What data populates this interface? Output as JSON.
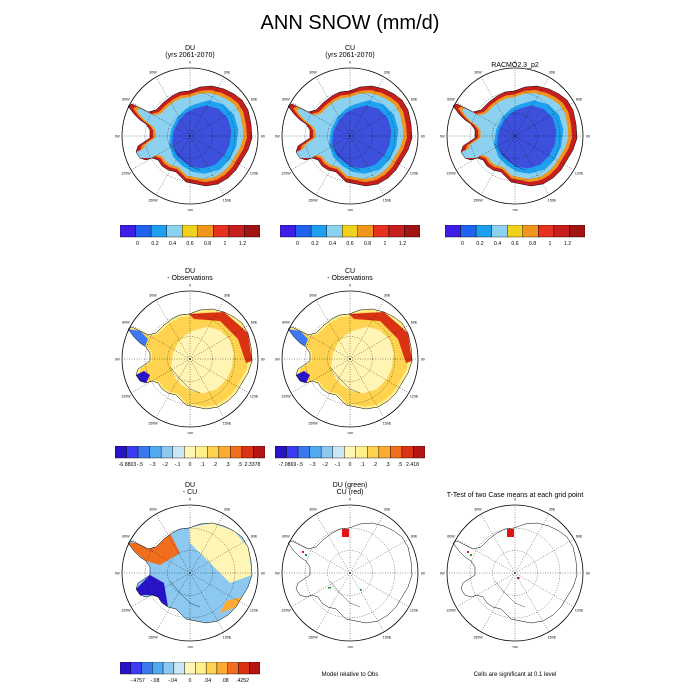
{
  "page": {
    "title": "ANN SNOW (mm/d)"
  },
  "chart_data": [
    {
      "type": "polar-map",
      "title_lines": [
        "DU",
        "(yrs 2061-2070)"
      ],
      "colorbar": {
        "colors": [
          "#3c1ee6",
          "#1e64f0",
          "#1ea0f0",
          "#8cd2f0",
          "#f0d21e",
          "#f0961e",
          "#e6321e",
          "#c81e1e",
          "#a01414"
        ],
        "labels": [
          "0",
          "0.2",
          "0.4",
          "0.6",
          "0.8",
          "1",
          "1.2"
        ]
      }
    },
    {
      "type": "polar-map",
      "title_lines": [
        "CU",
        "(yrs 2061-2070)"
      ],
      "colorbar": {
        "colors": [
          "#3c1ee6",
          "#1e64f0",
          "#1ea0f0",
          "#8cd2f0",
          "#f0d21e",
          "#f0961e",
          "#e6321e",
          "#c81e1e",
          "#a01414"
        ],
        "labels": [
          "0",
          "0.2",
          "0.4",
          "0.6",
          "0.8",
          "1",
          "1.2"
        ]
      }
    },
    {
      "type": "polar-map",
      "title_lines": [
        "RACMO2.3_p2"
      ],
      "colorbar": {
        "colors": [
          "#3c1ee6",
          "#1e64f0",
          "#1ea0f0",
          "#8cd2f0",
          "#f0d21e",
          "#f0961e",
          "#e6321e",
          "#c81e1e",
          "#a01414"
        ],
        "labels": [
          "0",
          "0.2",
          "0.4",
          "0.6",
          "0.8",
          "1",
          "1.2"
        ]
      }
    },
    {
      "type": "polar-map",
      "title_lines": [
        "DU",
        "- Observations"
      ],
      "colorbar": {
        "colors": [
          "#2814c8",
          "#3c3cf0",
          "#3c78f0",
          "#50aaf0",
          "#8cc8f0",
          "#c8e6f5",
          "#fff5b4",
          "#fff08c",
          "#ffd250",
          "#ffaa32",
          "#f06e1e",
          "#dc3214",
          "#b41414"
        ],
        "labels": [
          "-6.8803",
          "-.5",
          "-.3",
          "-.2",
          "-.1",
          "0",
          ".1",
          ".2",
          ".3",
          ".5",
          "2.3378"
        ]
      }
    },
    {
      "type": "polar-map",
      "title_lines": [
        "CU",
        "- Observations"
      ],
      "colorbar": {
        "colors": [
          "#2814c8",
          "#3c3cf0",
          "#3c78f0",
          "#50aaf0",
          "#8cc8f0",
          "#c8e6f5",
          "#fff5b4",
          "#fff08c",
          "#ffd250",
          "#ffaa32",
          "#f06e1e",
          "#dc3214",
          "#b41414"
        ],
        "labels": [
          "-7.0869",
          "-.5",
          "-.3",
          "-.2",
          "-.1",
          "0",
          ".1",
          ".2",
          ".3",
          ".5",
          "2.418"
        ]
      }
    },
    {
      "type": "polar-map",
      "title_lines": [
        "DU",
        "- CU"
      ],
      "colorbar": {
        "colors": [
          "#2814c8",
          "#3c3cf0",
          "#3c78f0",
          "#50aaf0",
          "#8cc8f0",
          "#c8e6f5",
          "#fff5b4",
          "#fff08c",
          "#ffd250",
          "#ffaa32",
          "#f06e1e",
          "#dc3214",
          "#b41414"
        ],
        "labels": [
          "-.4757",
          "-.08",
          "-.04",
          "0",
          ".04",
          ".08",
          ".4252"
        ]
      }
    },
    {
      "type": "polar-map",
      "title_lines": [
        "DU (green)",
        "CU (red)"
      ],
      "footnote": "Model relative to Obs"
    },
    {
      "type": "polar-map",
      "title_lines": [
        "T-Test of two Case means at each grid point"
      ],
      "footnote": "Cells are significant at 0.1 level"
    }
  ],
  "map_labels": [
    "0",
    "30E",
    "60E",
    "90E",
    "120E",
    "150E",
    "180",
    "150W",
    "120W",
    "90W",
    "60W",
    "30W"
  ]
}
